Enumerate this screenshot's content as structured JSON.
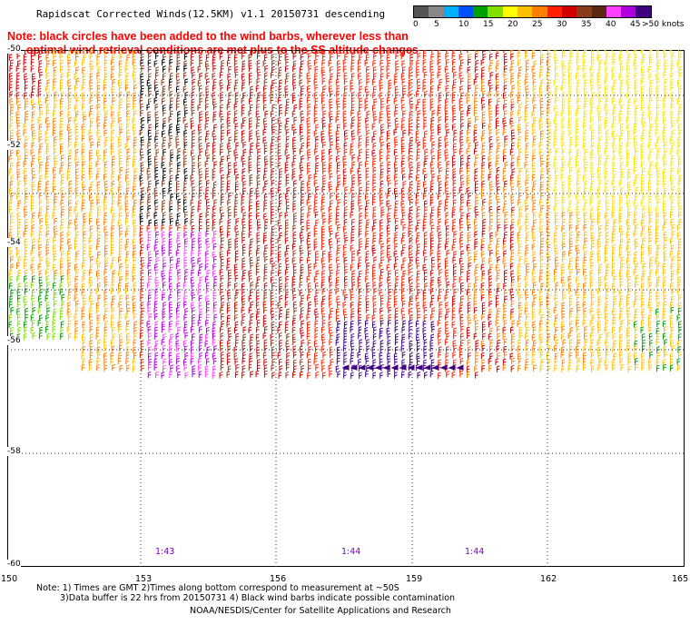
{
  "title": "Rapidscat Corrected Winds(12.5KM) v1.1 20150731 descending",
  "note_line1": "Note: black circles have been added to the wind barbs, wherever less than",
  "note_line2": "      optimal wind retrieval conditions are met plus to the SS altitude changes",
  "legend": {
    "unit": ">50 knots",
    "labels": [
      "0",
      "5",
      "10",
      "15",
      "20",
      "25",
      "30",
      "35",
      "40",
      "45"
    ],
    "colors": [
      "#555555",
      "#888888",
      "#00b0ff",
      "#0050ff",
      "#00a000",
      "#80e000",
      "#ffff00",
      "#ffc000",
      "#ff8000",
      "#ff2000",
      "#d00000",
      "#8b3a1a",
      "#5a2810",
      "#ff40ff",
      "#b000e0",
      "#400080"
    ]
  },
  "lat_labels": [
    "-50",
    "-52",
    "-54",
    "-56",
    "-58",
    "-60"
  ],
  "lon_labels": [
    "150",
    "153",
    "156",
    "159",
    "162",
    "165"
  ],
  "time_labels": [
    "1:43",
    "1:44",
    "1:44"
  ],
  "footer": {
    "line1": "Note: 1) Times are GMT 2)Times along bottom correspond to measurement at ~50S",
    "line2": "3)Data buffer is 22 hrs from 20150731 4) Black wind barbs indicate possible contamination",
    "line3": "NOAA/NESDIS/Center for Satellite Applications and Research"
  }
}
